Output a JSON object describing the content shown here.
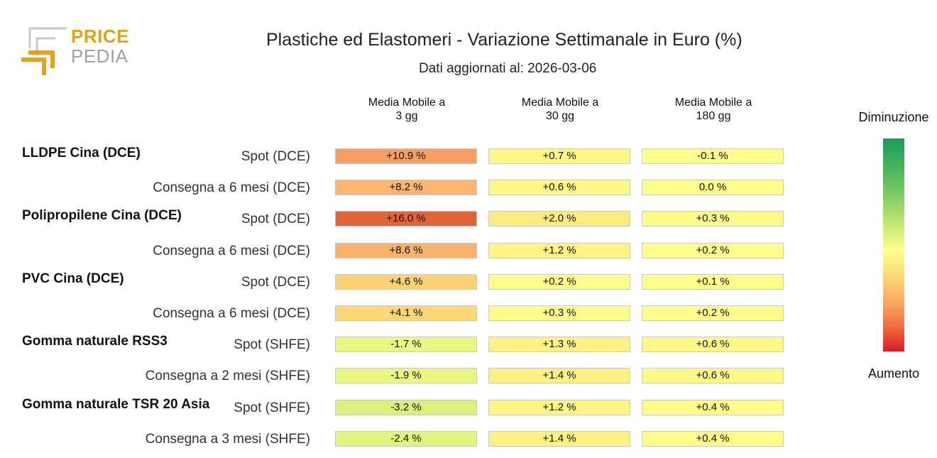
{
  "logo": {
    "line1": "PRICE",
    "line2": "PEDIA"
  },
  "header": {
    "title": "Plastiche ed Elastomeri - Variazione Settimanale in Euro (%)",
    "subtitle": "Dati aggiornati al: 2026-03-06"
  },
  "chart_data": {
    "type": "heatmap",
    "title": "Plastiche ed Elastomeri - Variazione Settimanale in Euro (%)",
    "subtitle": "Dati aggiornati al: 2026-03-06",
    "columns": [
      {
        "line1": "Media Mobile a",
        "line2": "3 gg"
      },
      {
        "line1": "Media Mobile a",
        "line2": "30 gg"
      },
      {
        "line1": "Media Mobile a",
        "line2": "180 gg"
      }
    ],
    "groups": [
      {
        "name": "LLDPE Cina (DCE)",
        "rows": [
          {
            "label": "Spot (DCE)",
            "values": [
              10.9,
              0.7,
              -0.1
            ],
            "texts": [
              "+10.9 %",
              "+0.7 %",
              "-0.1 %"
            ]
          },
          {
            "label": "Consegna a 6 mesi (DCE)",
            "values": [
              8.2,
              0.6,
              0.0
            ],
            "texts": [
              "+8.2 %",
              "+0.6 %",
              "0.0 %"
            ]
          }
        ]
      },
      {
        "name": "Polipropilene Cina (DCE)",
        "rows": [
          {
            "label": "Spot (DCE)",
            "values": [
              16.0,
              2.0,
              0.3
            ],
            "texts": [
              "+16.0 %",
              "+2.0 %",
              "+0.3 %"
            ]
          },
          {
            "label": "Consegna a 6 mesi (DCE)",
            "values": [
              8.6,
              1.2,
              0.2
            ],
            "texts": [
              "+8.6 %",
              "+1.2 %",
              "+0.2 %"
            ]
          }
        ]
      },
      {
        "name": "PVC Cina (DCE)",
        "rows": [
          {
            "label": "Spot (DCE)",
            "values": [
              4.6,
              0.2,
              0.1
            ],
            "texts": [
              "+4.6 %",
              "+0.2 %",
              "+0.1 %"
            ]
          },
          {
            "label": "Consegna a 6 mesi (DCE)",
            "values": [
              4.1,
              0.3,
              0.2
            ],
            "texts": [
              "+4.1 %",
              "+0.3 %",
              "+0.2 %"
            ]
          }
        ]
      },
      {
        "name": "Gomma naturale RSS3",
        "rows": [
          {
            "label": "Spot (SHFE)",
            "values": [
              -1.7,
              1.3,
              0.6
            ],
            "texts": [
              "-1.7 %",
              "+1.3 %",
              "+0.6 %"
            ]
          },
          {
            "label": "Consegna a 2 mesi (SHFE)",
            "values": [
              -1.9,
              1.4,
              0.6
            ],
            "texts": [
              "-1.9 %",
              "+1.4 %",
              "+0.6 %"
            ]
          }
        ]
      },
      {
        "name": "Gomma naturale TSR 20 Asia",
        "rows": [
          {
            "label": "Spot (SHFE)",
            "values": [
              -3.2,
              1.2,
              0.4
            ],
            "texts": [
              "-3.2 %",
              "+1.2 %",
              "+0.4 %"
            ]
          },
          {
            "label": "Consegna a 3 mesi (SHFE)",
            "values": [
              -2.4,
              1.4,
              0.4
            ],
            "texts": [
              "-2.4 %",
              "+1.4 %",
              "+0.4 %"
            ]
          }
        ]
      }
    ],
    "legend": {
      "top_label": "Diminuzione",
      "bottom_label": "Aumento"
    }
  },
  "colors": {
    "scale": [
      {
        "v": -20,
        "c": "#1a9a5c"
      },
      {
        "v": -6,
        "c": "#b8e26f"
      },
      {
        "v": 0,
        "c": "#ffff8c"
      },
      {
        "v": 4,
        "c": "#fdd776"
      },
      {
        "v": 10,
        "c": "#f9a86a"
      },
      {
        "v": 16,
        "c": "#e2623a"
      },
      {
        "v": 22,
        "c": "#d91c2a"
      }
    ]
  }
}
